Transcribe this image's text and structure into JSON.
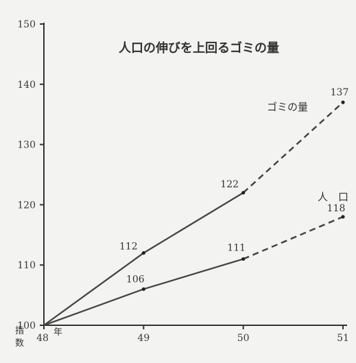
{
  "chart_data": {
    "type": "line",
    "title": "人口の伸びを上回るゴミの量",
    "x": [
      48,
      49,
      50,
      51
    ],
    "x_tick_labels": [
      "48",
      "49",
      "50",
      "51"
    ],
    "x_origin_unit": "年",
    "y_origin_note": [
      "指",
      "数"
    ],
    "ylim": [
      100,
      150
    ],
    "yticks": [
      100,
      110,
      120,
      130,
      140,
      150
    ],
    "grid": false,
    "series": [
      {
        "name": "ゴミの量",
        "values": [
          100,
          112,
          122,
          137
        ],
        "labels": [
          "",
          "112",
          "122",
          "137"
        ],
        "solid_until_index": 2
      },
      {
        "name": "人　口",
        "values": [
          100,
          106,
          111,
          118
        ],
        "labels": [
          "",
          "106",
          "111",
          "118"
        ],
        "solid_until_index": 2
      }
    ]
  }
}
